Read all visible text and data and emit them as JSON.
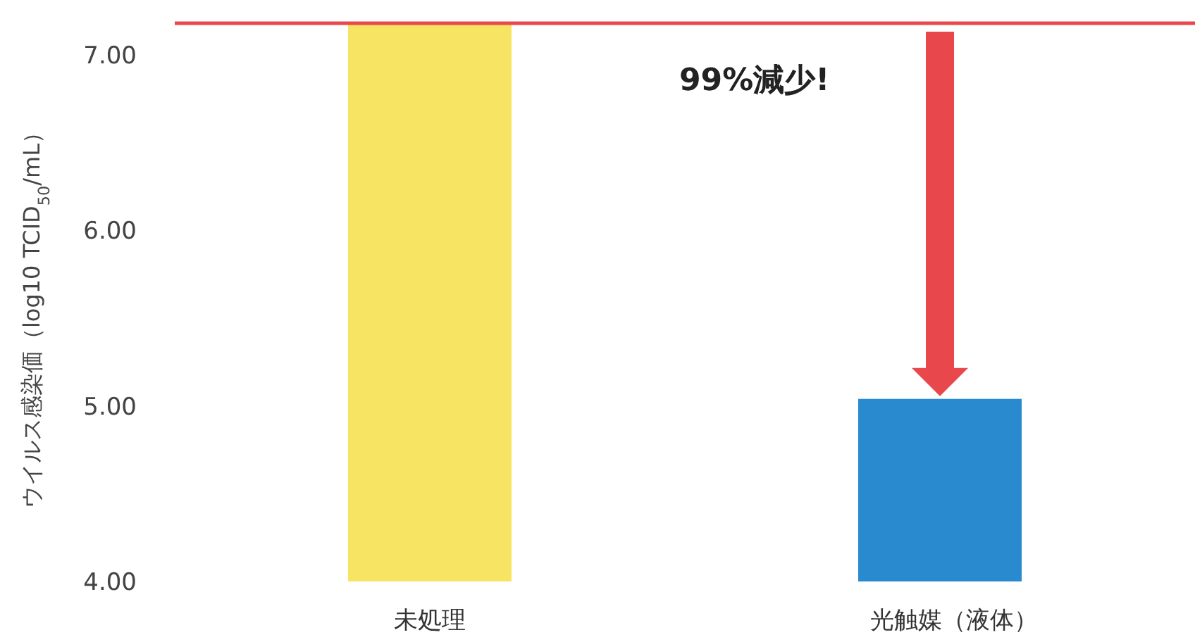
{
  "chart_data": {
    "type": "bar",
    "ylabel": "ウイルス感染価（log10 TCID$_{50}$/mL）",
    "categories": [
      "未処理",
      "光触媒（液体）"
    ],
    "values": [
      7.18,
      5.04
    ],
    "colors": [
      "#f7e463",
      "#2a8ad0"
    ],
    "ylim": [
      4,
      7.2
    ],
    "yticks": [
      {
        "value": 4,
        "label": "4.00"
      },
      {
        "value": 5,
        "label": "5.00"
      },
      {
        "value": 6,
        "label": "6.00"
      },
      {
        "value": 7,
        "label": "7.00"
      }
    ],
    "ref_lines": [
      {
        "axis": "y",
        "value": 7.18,
        "color": "#e8484c"
      }
    ],
    "annotations": [
      "99%減少!"
    ],
    "grid": false
  }
}
